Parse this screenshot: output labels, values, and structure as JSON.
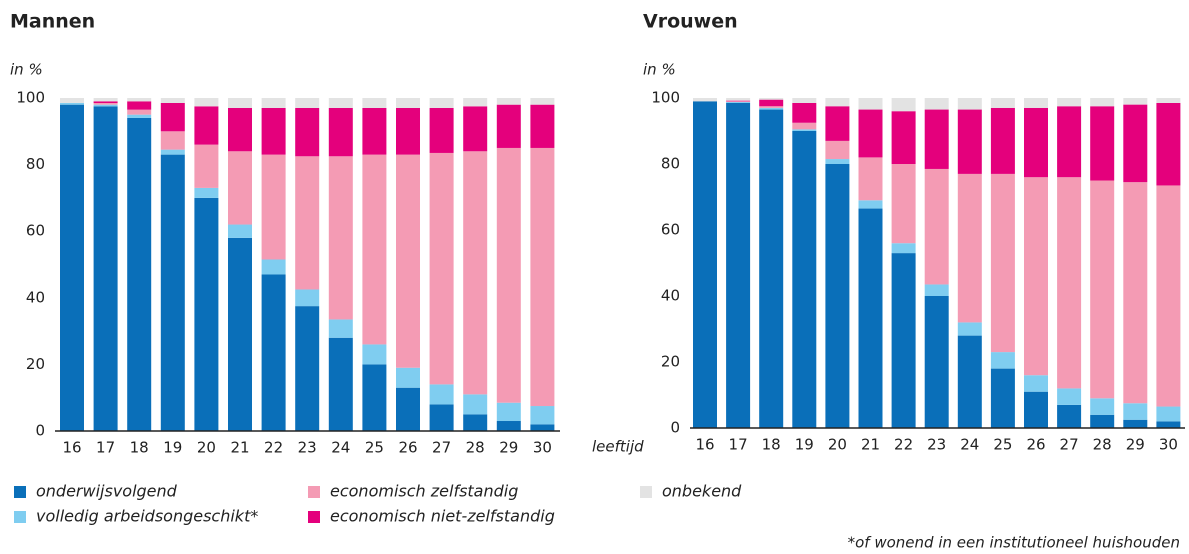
{
  "chart_data": [
    {
      "type": "stacked_bar",
      "title": "Mannen",
      "ylabel": "in %",
      "categories": [
        "16",
        "17",
        "18",
        "19",
        "20",
        "21",
        "22",
        "23",
        "24",
        "25",
        "26",
        "27",
        "28",
        "29",
        "30"
      ],
      "ylim": [
        0,
        100
      ],
      "yticks": [
        0,
        20,
        40,
        60,
        80,
        100
      ],
      "series": [
        {
          "name": "onderwijsvolgend",
          "color": "#0a6fb9",
          "values": [
            98,
            97.5,
            94,
            83,
            70,
            58,
            47,
            37.5,
            28,
            20,
            13,
            8,
            5,
            3,
            2
          ]
        },
        {
          "name": "volledig arbeidsongeschikt*",
          "color": "#7fcdf0",
          "values": [
            0.5,
            0.5,
            1,
            1.5,
            3,
            4,
            4.5,
            5,
            5.5,
            6,
            6,
            6,
            6,
            5.5,
            5.5
          ]
        },
        {
          "name": "economisch zelfstandig",
          "color": "#f49bb4",
          "values": [
            0,
            0.5,
            1.5,
            5.5,
            13,
            22,
            31.5,
            40,
            49,
            57,
            64,
            69.5,
            73,
            76.5,
            77.5
          ]
        },
        {
          "name": "economisch niet-zelfstandig",
          "color": "#e4007c",
          "values": [
            0,
            0.5,
            2.5,
            8.5,
            11.5,
            13,
            14,
            14.5,
            14.5,
            14,
            14,
            13.5,
            13.5,
            13,
            13
          ]
        },
        {
          "name": "onbekend",
          "color": "#e3e3e3",
          "values": [
            1.5,
            1,
            1,
            1.5,
            2.5,
            3,
            3,
            3,
            3,
            3,
            3,
            3,
            2.5,
            2,
            2
          ]
        }
      ]
    },
    {
      "type": "stacked_bar",
      "title": "Vrouwen",
      "ylabel": "in %",
      "xlabel": "leeftijd",
      "categories": [
        "16",
        "17",
        "18",
        "19",
        "20",
        "21",
        "22",
        "23",
        "24",
        "25",
        "26",
        "27",
        "28",
        "29",
        "30"
      ],
      "ylim": [
        0,
        100
      ],
      "yticks": [
        0,
        20,
        40,
        60,
        80,
        100
      ],
      "series": [
        {
          "name": "onderwijsvolgend",
          "color": "#0a6fb9",
          "values": [
            99,
            98.5,
            96.5,
            90,
            80,
            66.5,
            53,
            40,
            28,
            18,
            11,
            7,
            4,
            2.5,
            2
          ]
        },
        {
          "name": "volledig arbeidsongeschikt*",
          "color": "#7fcdf0",
          "values": [
            0,
            0.3,
            0.5,
            0.5,
            1.5,
            2.5,
            3,
            3.5,
            4,
            5,
            5,
            5,
            5,
            5,
            4.5
          ]
        },
        {
          "name": "economisch zelfstandig",
          "color": "#f49bb4",
          "values": [
            0,
            0.2,
            0.5,
            2,
            5.5,
            13,
            24,
            35,
            45,
            54,
            60,
            64,
            66,
            67,
            67
          ]
        },
        {
          "name": "economisch niet-zelfstandig",
          "color": "#e4007c",
          "values": [
            0,
            0.2,
            2,
            6,
            10.5,
            14.5,
            16,
            18,
            19.5,
            20,
            21,
            21.5,
            22.5,
            23.5,
            25
          ]
        },
        {
          "name": "onbekend",
          "color": "#e3e3e3",
          "values": [
            1,
            0.8,
            0.5,
            1.5,
            2.5,
            3.5,
            4,
            3.5,
            3.5,
            3,
            3,
            2.5,
            2.5,
            2,
            1.5
          ]
        }
      ]
    }
  ],
  "footnote": "*of wonend in een institutioneel huishouden"
}
